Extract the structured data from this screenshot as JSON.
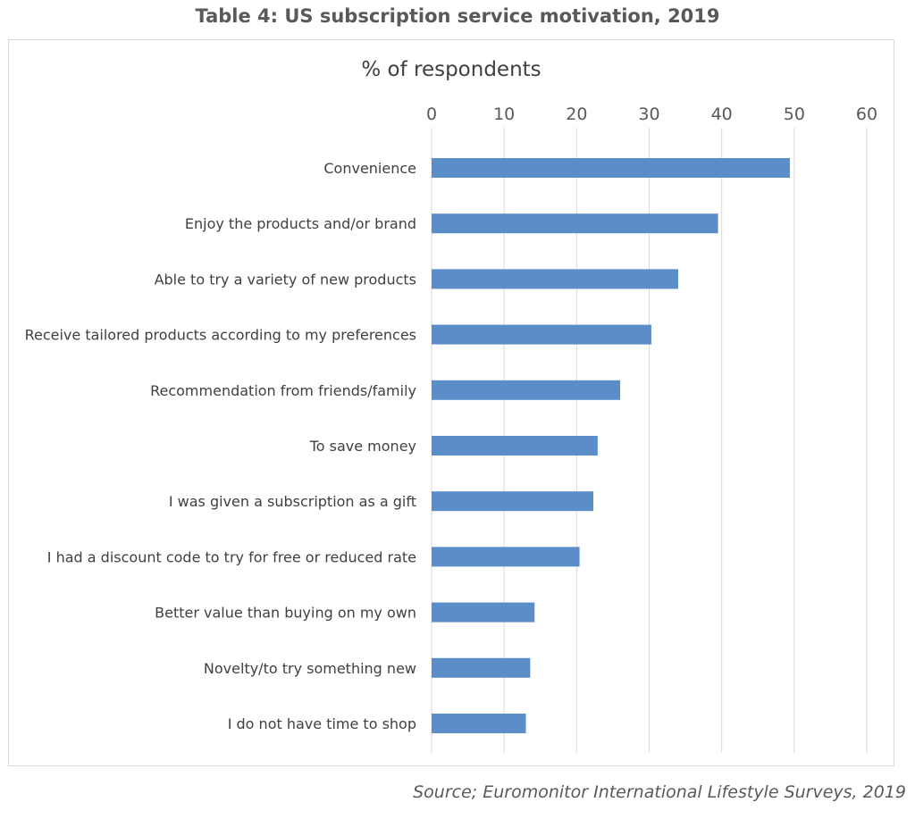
{
  "page": {
    "title": "Table 4: US subscription service motivation, 2019",
    "source": "Source; Euromonitor International Lifestyle Surveys, 2019"
  },
  "chart_data": {
    "type": "bar",
    "orientation": "horizontal",
    "title": "% of respondents",
    "xlabel": "",
    "ylabel": "",
    "xlim": [
      0,
      60
    ],
    "x_ticks": [
      0,
      10,
      20,
      30,
      40,
      50,
      60
    ],
    "x_axis_position": "top",
    "grid": true,
    "bar_color": "#5b8dc9",
    "categories": [
      "Convenience",
      "Enjoy the products and/or brand",
      "Able to try a variety of new products",
      "Receive tailored products according to my preferences",
      "Recommendation from friends/family",
      "To save money",
      "I was given a subscription as a gift",
      "I had a discount code to try for free or reduced rate",
      "Better value than buying on my own",
      "Novelty/to try something new",
      "I do not have time to shop"
    ],
    "values": [
      49.4,
      39.5,
      34.0,
      30.3,
      26.0,
      22.9,
      22.3,
      20.4,
      14.2,
      13.6,
      13.0
    ]
  }
}
